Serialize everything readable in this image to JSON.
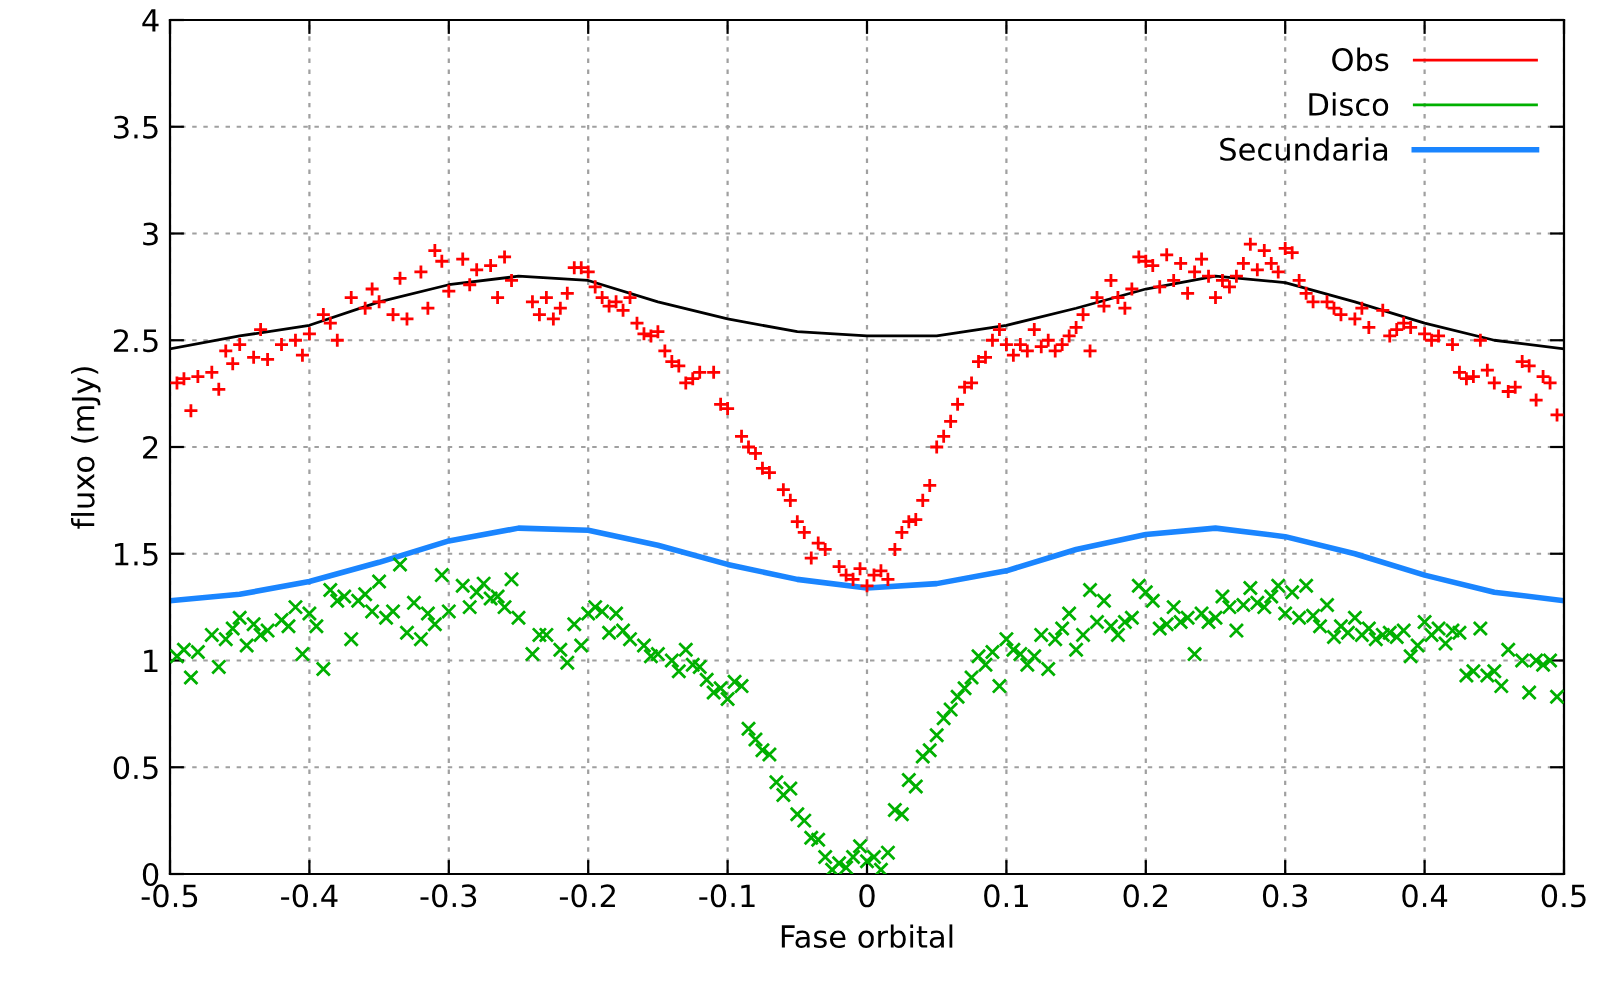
{
  "chart_data": {
    "type": "scatter",
    "xlabel": "Fase orbital",
    "ylabel": "fluxo (mJy)",
    "xlim": [
      -0.5,
      0.5
    ],
    "xticks": [
      -0.5,
      -0.4,
      -0.3,
      -0.2,
      -0.1,
      0,
      0.1,
      0.2,
      0.3,
      0.4,
      0.5
    ],
    "ylim": [
      0,
      4
    ],
    "yticks": [
      0,
      0.5,
      1,
      1.5,
      2,
      2.5,
      3,
      3.5,
      4
    ],
    "grid": true,
    "legend": "top right",
    "series": [
      {
        "name": "Obs",
        "marker": "plus",
        "color": "#ff0000",
        "x": [
          -0.495,
          -0.49,
          -0.485,
          -0.48,
          -0.47,
          -0.465,
          -0.46,
          -0.455,
          -0.45,
          -0.44,
          -0.435,
          -0.43,
          -0.42,
          -0.41,
          -0.405,
          -0.4,
          -0.39,
          -0.385,
          -0.38,
          -0.37,
          -0.36,
          -0.355,
          -0.35,
          -0.34,
          -0.335,
          -0.33,
          -0.32,
          -0.315,
          -0.31,
          -0.305,
          -0.3,
          -0.29,
          -0.285,
          -0.28,
          -0.27,
          -0.265,
          -0.26,
          -0.255,
          -0.24,
          -0.235,
          -0.23,
          -0.225,
          -0.22,
          -0.215,
          -0.21,
          -0.205,
          -0.2,
          -0.195,
          -0.19,
          -0.185,
          -0.18,
          -0.175,
          -0.17,
          -0.165,
          -0.16,
          -0.155,
          -0.15,
          -0.145,
          -0.14,
          -0.135,
          -0.13,
          -0.125,
          -0.12,
          -0.11,
          -0.105,
          -0.1,
          -0.09,
          -0.085,
          -0.08,
          -0.075,
          -0.07,
          -0.06,
          -0.055,
          -0.05,
          -0.045,
          -0.04,
          -0.035,
          -0.03,
          -0.02,
          -0.015,
          -0.01,
          -0.005,
          0.0,
          0.005,
          0.01,
          0.015,
          0.02,
          0.025,
          0.03,
          0.035,
          0.04,
          0.045,
          0.05,
          0.055,
          0.06,
          0.065,
          0.07,
          0.075,
          0.08,
          0.085,
          0.09,
          0.095,
          0.1,
          0.105,
          0.11,
          0.115,
          0.12,
          0.125,
          0.13,
          0.135,
          0.14,
          0.145,
          0.15,
          0.155,
          0.16,
          0.165,
          0.17,
          0.175,
          0.18,
          0.185,
          0.19,
          0.195,
          0.2,
          0.205,
          0.21,
          0.215,
          0.22,
          0.225,
          0.23,
          0.235,
          0.24,
          0.245,
          0.25,
          0.255,
          0.26,
          0.265,
          0.27,
          0.275,
          0.28,
          0.285,
          0.29,
          0.295,
          0.3,
          0.305,
          0.31,
          0.315,
          0.32,
          0.33,
          0.335,
          0.34,
          0.35,
          0.355,
          0.36,
          0.37,
          0.375,
          0.38,
          0.385,
          0.39,
          0.4,
          0.405,
          0.41,
          0.42,
          0.425,
          0.43,
          0.435,
          0.44,
          0.445,
          0.45,
          0.46,
          0.465,
          0.47,
          0.475,
          0.48,
          0.485,
          0.49,
          0.495
        ],
        "values": [
          2.3,
          2.32,
          2.17,
          2.33,
          2.35,
          2.27,
          2.45,
          2.39,
          2.48,
          2.42,
          2.55,
          2.41,
          2.48,
          2.5,
          2.43,
          2.53,
          2.62,
          2.58,
          2.5,
          2.7,
          2.65,
          2.74,
          2.68,
          2.62,
          2.79,
          2.6,
          2.82,
          2.65,
          2.92,
          2.87,
          2.73,
          2.88,
          2.76,
          2.83,
          2.85,
          2.7,
          2.89,
          2.78,
          2.68,
          2.62,
          2.7,
          2.6,
          2.65,
          2.72,
          2.84,
          2.84,
          2.82,
          2.75,
          2.7,
          2.66,
          2.68,
          2.64,
          2.7,
          2.58,
          2.53,
          2.52,
          2.54,
          2.45,
          2.4,
          2.38,
          2.3,
          2.32,
          2.35,
          2.35,
          2.2,
          2.18,
          2.05,
          2.0,
          1.97,
          1.9,
          1.88,
          1.8,
          1.75,
          1.65,
          1.6,
          1.48,
          1.55,
          1.52,
          1.44,
          1.4,
          1.38,
          1.43,
          1.35,
          1.4,
          1.42,
          1.38,
          1.52,
          1.6,
          1.65,
          1.66,
          1.75,
          1.82,
          2.0,
          2.05,
          2.12,
          2.2,
          2.28,
          2.3,
          2.4,
          2.42,
          2.5,
          2.55,
          2.48,
          2.43,
          2.48,
          2.45,
          2.55,
          2.47,
          2.5,
          2.45,
          2.48,
          2.52,
          2.56,
          2.62,
          2.45,
          2.7,
          2.66,
          2.78,
          2.7,
          2.65,
          2.74,
          2.89,
          2.87,
          2.85,
          2.75,
          2.9,
          2.78,
          2.86,
          2.72,
          2.82,
          2.88,
          2.8,
          2.7,
          2.78,
          2.75,
          2.8,
          2.86,
          2.95,
          2.83,
          2.92,
          2.86,
          2.82,
          2.93,
          2.91,
          2.78,
          2.72,
          2.68,
          2.68,
          2.65,
          2.62,
          2.6,
          2.65,
          2.56,
          2.64,
          2.52,
          2.55,
          2.58,
          2.56,
          2.53,
          2.5,
          2.52,
          2.48,
          2.35,
          2.32,
          2.33,
          2.5,
          2.36,
          2.3,
          2.26,
          2.28,
          2.4,
          2.38,
          2.22,
          2.33,
          2.3,
          2.15
        ]
      },
      {
        "name": "Disco",
        "marker": "cross",
        "color": "#00b000",
        "x": [
          -0.495,
          -0.49,
          -0.485,
          -0.48,
          -0.47,
          -0.465,
          -0.46,
          -0.455,
          -0.45,
          -0.445,
          -0.44,
          -0.435,
          -0.43,
          -0.42,
          -0.415,
          -0.41,
          -0.405,
          -0.4,
          -0.395,
          -0.39,
          -0.385,
          -0.38,
          -0.375,
          -0.37,
          -0.365,
          -0.36,
          -0.355,
          -0.35,
          -0.345,
          -0.34,
          -0.335,
          -0.33,
          -0.325,
          -0.32,
          -0.315,
          -0.31,
          -0.305,
          -0.3,
          -0.29,
          -0.285,
          -0.28,
          -0.275,
          -0.27,
          -0.265,
          -0.26,
          -0.255,
          -0.25,
          -0.24,
          -0.235,
          -0.23,
          -0.22,
          -0.215,
          -0.21,
          -0.205,
          -0.2,
          -0.195,
          -0.19,
          -0.185,
          -0.18,
          -0.175,
          -0.17,
          -0.16,
          -0.155,
          -0.15,
          -0.14,
          -0.135,
          -0.13,
          -0.125,
          -0.12,
          -0.115,
          -0.11,
          -0.105,
          -0.1,
          -0.095,
          -0.09,
          -0.085,
          -0.08,
          -0.075,
          -0.07,
          -0.065,
          -0.06,
          -0.055,
          -0.05,
          -0.045,
          -0.04,
          -0.035,
          -0.03,
          -0.025,
          -0.02,
          -0.015,
          -0.01,
          -0.005,
          0.0,
          0.005,
          0.01,
          0.015,
          0.02,
          0.025,
          0.03,
          0.035,
          0.04,
          0.045,
          0.05,
          0.055,
          0.06,
          0.065,
          0.07,
          0.075,
          0.08,
          0.085,
          0.09,
          0.095,
          0.1,
          0.105,
          0.11,
          0.115,
          0.12,
          0.125,
          0.13,
          0.135,
          0.14,
          0.145,
          0.15,
          0.155,
          0.16,
          0.165,
          0.17,
          0.175,
          0.18,
          0.185,
          0.19,
          0.195,
          0.2,
          0.205,
          0.21,
          0.215,
          0.22,
          0.225,
          0.23,
          0.235,
          0.24,
          0.245,
          0.25,
          0.255,
          0.26,
          0.265,
          0.27,
          0.275,
          0.28,
          0.285,
          0.29,
          0.295,
          0.3,
          0.305,
          0.31,
          0.315,
          0.32,
          0.325,
          0.33,
          0.335,
          0.34,
          0.345,
          0.35,
          0.355,
          0.36,
          0.365,
          0.37,
          0.375,
          0.38,
          0.385,
          0.39,
          0.395,
          0.4,
          0.405,
          0.41,
          0.415,
          0.42,
          0.425,
          0.43,
          0.435,
          0.44,
          0.445,
          0.45,
          0.455,
          0.46,
          0.47,
          0.475,
          0.48,
          0.485,
          0.49,
          0.495
        ],
        "values": [
          1.02,
          1.05,
          0.92,
          1.04,
          1.12,
          0.97,
          1.1,
          1.15,
          1.2,
          1.07,
          1.17,
          1.12,
          1.14,
          1.19,
          1.16,
          1.25,
          1.03,
          1.22,
          1.16,
          0.96,
          1.33,
          1.28,
          1.3,
          1.1,
          1.28,
          1.31,
          1.23,
          1.37,
          1.2,
          1.23,
          1.45,
          1.13,
          1.27,
          1.1,
          1.22,
          1.17,
          1.4,
          1.23,
          1.35,
          1.25,
          1.32,
          1.36,
          1.29,
          1.3,
          1.25,
          1.38,
          1.2,
          1.03,
          1.12,
          1.12,
          1.05,
          0.99,
          1.17,
          1.07,
          1.22,
          1.25,
          1.23,
          1.13,
          1.22,
          1.14,
          1.1,
          1.07,
          1.02,
          1.03,
          1.0,
          0.95,
          1.05,
          0.98,
          0.97,
          0.91,
          0.85,
          0.87,
          0.82,
          0.9,
          0.88,
          0.68,
          0.63,
          0.58,
          0.56,
          0.43,
          0.37,
          0.4,
          0.28,
          0.25,
          0.17,
          0.16,
          0.08,
          0.02,
          0.05,
          0.03,
          0.08,
          0.13,
          0.06,
          0.08,
          0.02,
          0.1,
          0.3,
          0.28,
          0.44,
          0.41,
          0.55,
          0.58,
          0.65,
          0.73,
          0.77,
          0.83,
          0.87,
          0.92,
          1.02,
          0.98,
          1.04,
          0.88,
          1.1,
          1.05,
          1.03,
          0.98,
          1.02,
          1.12,
          0.96,
          1.1,
          1.15,
          1.22,
          1.05,
          1.12,
          1.33,
          1.18,
          1.28,
          1.16,
          1.12,
          1.18,
          1.2,
          1.35,
          1.32,
          1.28,
          1.15,
          1.17,
          1.25,
          1.18,
          1.2,
          1.03,
          1.22,
          1.18,
          1.2,
          1.3,
          1.25,
          1.14,
          1.26,
          1.34,
          1.27,
          1.25,
          1.3,
          1.35,
          1.22,
          1.32,
          1.2,
          1.35,
          1.21,
          1.16,
          1.26,
          1.11,
          1.16,
          1.13,
          1.2,
          1.12,
          1.15,
          1.1,
          1.12,
          1.13,
          1.11,
          1.14,
          1.02,
          1.07,
          1.18,
          1.12,
          1.15,
          1.08,
          1.14,
          1.13,
          0.93,
          0.95,
          1.15,
          0.93,
          0.95,
          0.88,
          1.05,
          1.0,
          0.85,
          1.0,
          0.98,
          1.0,
          0.83
        ]
      },
      {
        "name": "Secundaria",
        "type": "line",
        "color": "#1a85ff",
        "x": [
          -0.5,
          -0.45,
          -0.4,
          -0.35,
          -0.3,
          -0.25,
          -0.2,
          -0.15,
          -0.1,
          -0.05,
          0,
          0.05,
          0.1,
          0.15,
          0.2,
          0.25,
          0.3,
          0.35,
          0.4,
          0.45,
          0.5
        ],
        "values": [
          1.28,
          1.31,
          1.37,
          1.46,
          1.56,
          1.62,
          1.61,
          1.54,
          1.45,
          1.38,
          1.34,
          1.36,
          1.42,
          1.52,
          1.59,
          1.62,
          1.58,
          1.5,
          1.4,
          1.32,
          1.28
        ]
      },
      {
        "type": "line",
        "color": "#000000",
        "x": [
          -0.5,
          -0.45,
          -0.4,
          -0.35,
          -0.3,
          -0.25,
          -0.2,
          -0.15,
          -0.1,
          -0.05,
          0,
          0.05,
          0.1,
          0.15,
          0.2,
          0.25,
          0.3,
          0.35,
          0.4,
          0.45,
          0.5
        ],
        "values": [
          2.46,
          2.52,
          2.57,
          2.68,
          2.76,
          2.8,
          2.78,
          2.68,
          2.6,
          2.54,
          2.52,
          2.52,
          2.57,
          2.65,
          2.74,
          2.8,
          2.77,
          2.68,
          2.58,
          2.5,
          2.46
        ]
      }
    ]
  }
}
